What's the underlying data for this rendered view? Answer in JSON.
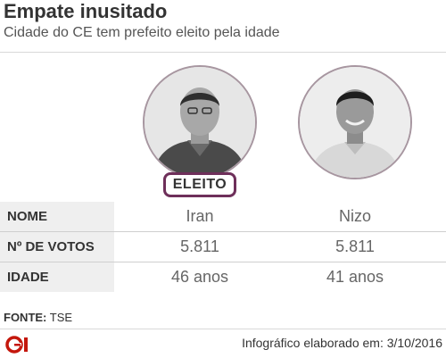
{
  "header": {
    "title": "Empate inusitado",
    "subtitle": "Cidade do CE tem prefeito eleito pela idade"
  },
  "badge": {
    "label": "ELEITO"
  },
  "table": {
    "rows": [
      {
        "label": "NOME",
        "values": [
          "Iran",
          "Nizo"
        ]
      },
      {
        "label": "Nº DE VOTOS",
        "values": [
          "5.811",
          "5.811"
        ]
      },
      {
        "label": "IDADE",
        "values": [
          "46 anos",
          "41 anos"
        ]
      }
    ]
  },
  "footer": {
    "source_label": "FONTE:",
    "source_value": "TSE",
    "logo": "G1",
    "credit": "Infográfico elaborado em: 3/10/2016"
  },
  "colors": {
    "accent": "#6e2f5a",
    "logo_red": "#c4170c",
    "row_label_bg": "#efefef"
  }
}
